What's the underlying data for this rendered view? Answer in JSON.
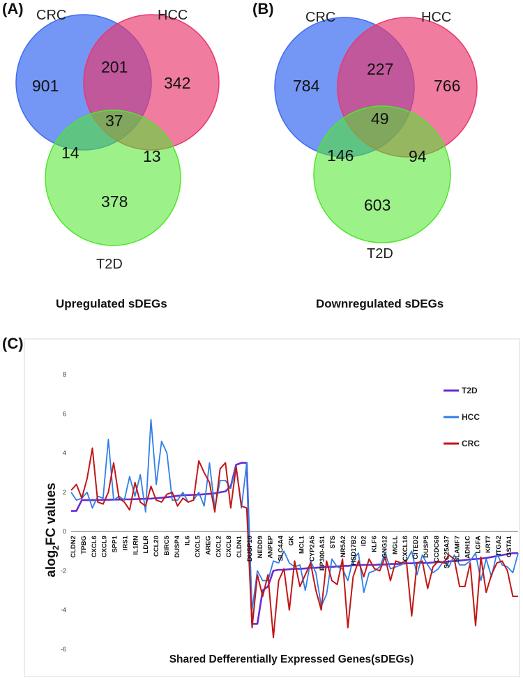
{
  "panels": {
    "a": "(A)",
    "b": "(B)",
    "c": "(C)"
  },
  "colors": {
    "crc_circle": "#3f6df0",
    "hcc_circle": "#e8386e",
    "t2d_circle": "#4fe62c",
    "t2d_line": "#6a2bd1",
    "hcc_line": "#2f7fe6",
    "crc_line": "#c21616"
  },
  "venn_up": {
    "labels": {
      "crc": "CRC",
      "hcc": "HCC",
      "t2d": "T2D"
    },
    "counts": {
      "crc_only": "901",
      "hcc_only": "342",
      "crc_hcc": "201",
      "all": "37",
      "crc_t2d": "14",
      "hcc_t2d": "13",
      "t2d_only": "378"
    },
    "title": "Upregulated sDEGs"
  },
  "venn_down": {
    "labels": {
      "crc": "CRC",
      "hcc": "HCC",
      "t2d": "T2D"
    },
    "counts": {
      "crc_only": "784",
      "hcc_only": "766",
      "crc_hcc": "227",
      "all": "49",
      "crc_t2d": "146",
      "hcc_t2d": "94",
      "t2d_only": "603"
    },
    "title": "Downregulated sDEGs"
  },
  "chart_data": {
    "type": "line",
    "ylabel_prefix": "alog",
    "ylabel_sub": "2",
    "ylabel_suffix": "FC values",
    "xlabel": "Shared Defferentially Expressed Genes(sDEGs)",
    "ylim": [
      -6,
      8
    ],
    "yticks": [
      "8",
      "6",
      "4",
      "2",
      "0",
      "-2",
      "-4",
      "-6"
    ],
    "yticks_values": [
      8,
      6,
      4,
      2,
      0,
      -2,
      -4,
      -6
    ],
    "gene_labels": [
      "CLDN2",
      "TPBG",
      "CXCL6",
      "CXCL9",
      "SPP1",
      "IRS1",
      "IL1RN",
      "LDLR",
      "CCL20",
      "BIRC5",
      "DUSP4",
      "IL6",
      "CXCL5",
      "AREG",
      "CXCL2",
      "CXCL8",
      "CLDN1",
      "DUSP10",
      "NEDD9",
      "ANPEP",
      "SLC4A4",
      "GK",
      "MCL1",
      "CYP2A5",
      "EP300-AS1",
      "STS",
      "NR5A2",
      "HSD17B2",
      "ID2",
      "KLF6",
      "GNG12",
      "MGLL",
      "CXCL16",
      "CITED2",
      "DUSP5",
      "CCDC68",
      "SLC25A37",
      "SLAMF7",
      "ADH1C",
      "LGFA",
      "KRT7",
      "ITGA2",
      "GSTA1"
    ],
    "series": [
      {
        "name": "T2D",
        "values": [
          1.05,
          1.05,
          1.6,
          1.6,
          1.6,
          1.6,
          1.62,
          1.62,
          1.63,
          1.63,
          1.64,
          1.64,
          1.65,
          1.66,
          1.67,
          1.68,
          1.7,
          1.72,
          1.75,
          1.78,
          1.82,
          1.85,
          1.86,
          1.87,
          1.88,
          1.9,
          1.92,
          1.95,
          2.0,
          2.05,
          2.3,
          3.4,
          3.5,
          3.5,
          -4.7,
          -4.7,
          -3.0,
          -2.8,
          -2.0,
          -1.95,
          -1.95,
          -1.92,
          -1.9,
          -1.9,
          -1.88,
          -1.85,
          -1.85,
          -1.82,
          -1.8,
          -1.8,
          -1.78,
          -1.75,
          -1.75,
          -1.72,
          -1.72,
          -1.7,
          -1.7,
          -1.7,
          -1.68,
          -1.68,
          -1.65,
          -1.65,
          -1.65,
          -1.62,
          -1.62,
          -1.6,
          -1.6,
          -1.6,
          -1.58,
          -1.55,
          -1.55,
          -1.52,
          -1.5,
          -1.48,
          -1.45,
          -1.42,
          -1.4,
          -1.38,
          -1.35,
          -1.3,
          -1.25,
          -1.2,
          -1.15,
          -1.1,
          -1.1
        ]
      },
      {
        "name": "HCC",
        "values": [
          2.0,
          1.6,
          1.7,
          2.0,
          1.2,
          1.8,
          1.7,
          4.7,
          1.6,
          1.8,
          1.6,
          2.8,
          1.8,
          2.9,
          1.0,
          5.7,
          2.4,
          4.6,
          4.0,
          1.6,
          1.6,
          2.0,
          1.5,
          1.6,
          2.0,
          1.3,
          3.5,
          1.2,
          2.6,
          2.6,
          2.2,
          3.3,
          1.2,
          3.5,
          -4.0,
          -2.0,
          -2.5,
          -2.5,
          -1.5,
          -1.6,
          -1.0,
          -1.6,
          -1.8,
          -1.7,
          -3.0,
          -1.5,
          -2.1,
          -3.8,
          -3.2,
          -1.4,
          -1.8,
          -1.9,
          -2.5,
          -1.4,
          -1.1,
          -3.1,
          -2.1,
          -2.0,
          -1.8,
          -1.1,
          -1.9,
          -1.8,
          -1.7,
          -1.5,
          -1.0,
          -2.2,
          -1.2,
          -1.7,
          -2.1,
          -1.9,
          -1.5,
          -1.8,
          -1.2,
          -1.7,
          -1.7,
          -1.5,
          -1.1,
          -2.5,
          -1.4,
          -2.3,
          -1.1,
          -1.7,
          -1.8,
          -2.1,
          -1.1
        ]
      },
      {
        "name": "CRC",
        "values": [
          2.1,
          2.4,
          1.7,
          2.7,
          4.25,
          1.5,
          1.4,
          2.0,
          3.5,
          1.7,
          1.5,
          1.1,
          2.5,
          1.5,
          1.3,
          2.3,
          1.6,
          1.5,
          1.9,
          2.0,
          1.3,
          1.7,
          1.5,
          1.6,
          3.6,
          3.0,
          2.5,
          1.0,
          3.2,
          3.5,
          1.2,
          3.3,
          1.3,
          1.2,
          -4.9,
          -2.2,
          -3.3,
          -2.2,
          -5.4,
          -2.5,
          -1.9,
          -4.0,
          -1.5,
          -2.8,
          -2.2,
          -1.6,
          -3.0,
          -4.0,
          -1.5,
          -2.5,
          -2.7,
          -1.4,
          -4.9,
          -2.3,
          -1.5,
          -2.3,
          -1.4,
          -1.9,
          -2.0,
          -1.3,
          -2.5,
          -1.5,
          -1.6,
          -1.5,
          -4.3,
          -1.6,
          -1.5,
          -2.9,
          -1.8,
          -1.5,
          -1.6,
          -1.2,
          -1.4,
          -2.8,
          -2.8,
          -1.6,
          -4.8,
          -1.3,
          -3.1,
          -2.2,
          -1.6,
          -1.5,
          -2.0,
          -3.3,
          -3.3
        ]
      }
    ],
    "legend": [
      "T2D",
      "HCC",
      "CRC"
    ],
    "legend_position": "right"
  }
}
